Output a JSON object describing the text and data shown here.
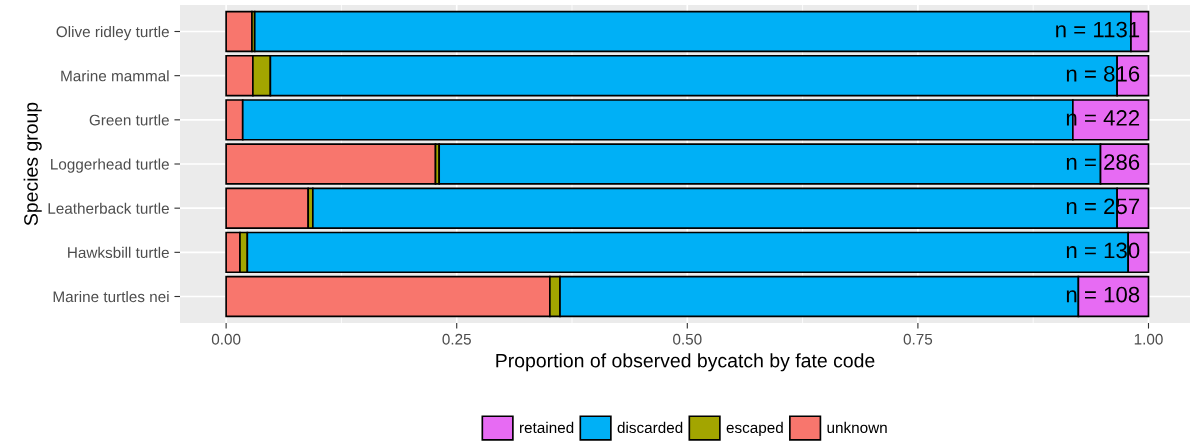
{
  "chart_data": {
    "type": "bar",
    "orientation": "horizontal",
    "stacked": true,
    "xlabel": "Proportion of observed bycatch by fate code",
    "ylabel": "Species group",
    "categories": [
      "Olive ridley turtle",
      "Marine mammal",
      "Green turtle",
      "Loggerhead turtle",
      "Leatherback turtle",
      "Hawksbill turtle",
      "Marine turtles nei"
    ],
    "series": [
      {
        "name": "unknown",
        "color": "#f8766d",
        "values": [
          0.028,
          0.029,
          0.018,
          0.227,
          0.089,
          0.015,
          0.351
        ]
      },
      {
        "name": "escaped",
        "color": "#a3a500",
        "values": [
          0.003,
          0.019,
          null,
          0.004,
          0.005,
          0.008,
          0.011
        ]
      },
      {
        "name": "discarded",
        "color": "#00b0f6",
        "values": [
          0.95,
          0.918,
          0.9,
          0.717,
          0.872,
          0.955,
          0.562
        ]
      },
      {
        "name": "retained",
        "color": "#e76bf3",
        "values": [
          0.019,
          0.034,
          0.082,
          0.052,
          0.034,
          0.022,
          0.076
        ]
      }
    ],
    "xlim": [
      -0.05,
      1.045
    ],
    "xticks": [
      {
        "value": 0,
        "label": "0.00"
      },
      {
        "value": 0.25,
        "label": "0.25"
      },
      {
        "value": 0.5,
        "label": "0.50"
      },
      {
        "value": 0.75,
        "label": "0.75"
      },
      {
        "value": 1,
        "label": "1.00"
      }
    ],
    "annotations": [
      "n = 1131",
      "n = 816",
      "n = 422",
      "n = 286",
      "n = 257",
      "n = 130",
      "n = 108"
    ],
    "grid": true,
    "legend": "bottom"
  }
}
